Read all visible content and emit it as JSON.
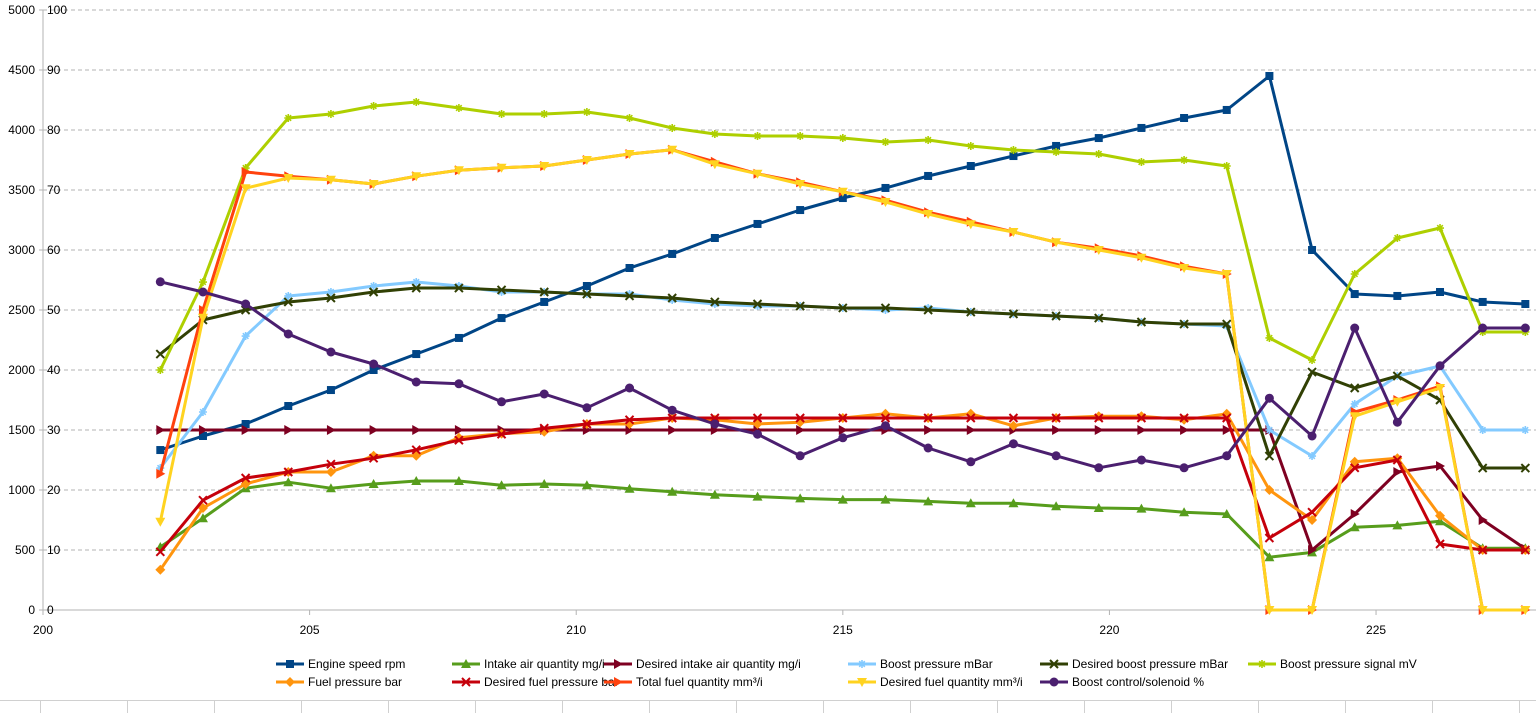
{
  "chart_data": {
    "type": "line",
    "title": "",
    "xlabel": "",
    "ylabel": "",
    "xlim": [
      200,
      228
    ],
    "x_ticks": [
      "200",
      "205",
      "210",
      "215",
      "220",
      "225"
    ],
    "y_left_lim": [
      0,
      5000
    ],
    "y_left_ticks": [
      "0",
      "500",
      "1000",
      "1500",
      "2000",
      "2500",
      "3000",
      "3500",
      "4000",
      "4500",
      "5000"
    ],
    "y_right_lim": [
      0,
      100
    ],
    "y_right_ticks": [
      "0",
      "10",
      "20",
      "30",
      "40",
      "50",
      "60",
      "70",
      "80",
      "90",
      "100"
    ],
    "grid": true,
    "legend_position": "bottom",
    "x": [
      202.2,
      203.0,
      203.8,
      204.6,
      205.4,
      206.2,
      207.0,
      207.8,
      208.6,
      209.4,
      210.2,
      211.0,
      211.8,
      212.6,
      213.4,
      214.2,
      215.0,
      215.8,
      216.6,
      217.4,
      218.2,
      219.0,
      219.8,
      220.6,
      221.4,
      222.2,
      223.0,
      223.8,
      224.6,
      225.4,
      226.2,
      227.0,
      227.8
    ],
    "series": [
      {
        "name": "Engine speed rpm",
        "axis": "left",
        "color": "#004586",
        "marker": "square",
        "values": [
          1333,
          1450,
          1550,
          1700,
          1833,
          2000,
          2133,
          2267,
          2433,
          2567,
          2700,
          2850,
          2967,
          3100,
          3217,
          3333,
          3433,
          3517,
          3617,
          3700,
          3783,
          3867,
          3933,
          4017,
          4100,
          4167,
          4450,
          3000,
          2633,
          2617,
          2650,
          2567,
          2550
        ]
      },
      {
        "name": "Intake air quantity mg/i",
        "axis": "right",
        "color": "#579d1c",
        "marker": "triangle",
        "values": [
          10.5,
          15.3,
          20.3,
          21.3,
          20.3,
          21.0,
          21.5,
          21.5,
          20.8,
          21.0,
          20.8,
          20.2,
          19.7,
          19.2,
          18.9,
          18.6,
          18.4,
          18.4,
          18.1,
          17.8,
          17.8,
          17.3,
          17.0,
          16.9,
          16.3,
          16.0,
          8.8,
          9.6,
          13.8,
          14.1,
          14.8,
          10.3,
          10.3
        ]
      },
      {
        "name": "Desired intake air quantity mg/i",
        "axis": "right",
        "color": "#7e0021",
        "marker": "triangle-right",
        "values": [
          30,
          30,
          30,
          30,
          30,
          30,
          30,
          30,
          30,
          30,
          30,
          30,
          30,
          30,
          30,
          30,
          30,
          30,
          30,
          30,
          30,
          30,
          30,
          30,
          30,
          30,
          30,
          10,
          16,
          23,
          24,
          15,
          10.2
        ]
      },
      {
        "name": "Boost pressure mBar",
        "axis": "left",
        "color": "#83caff",
        "marker": "star",
        "values": [
          1183,
          1650,
          2283,
          2617,
          2650,
          2700,
          2733,
          2700,
          2650,
          2650,
          2633,
          2633,
          2583,
          2550,
          2533,
          2533,
          2517,
          2500,
          2517,
          2483,
          2467,
          2450,
          2433,
          2400,
          2383,
          2367,
          1500,
          1283,
          1717,
          1950,
          2033,
          1500,
          1500
        ]
      },
      {
        "name": "Desired boost pressure mBar",
        "axis": "left",
        "color": "#314004",
        "marker": "x",
        "values": [
          2133,
          2417,
          2500,
          2567,
          2600,
          2650,
          2683,
          2683,
          2667,
          2650,
          2633,
          2617,
          2600,
          2567,
          2550,
          2533,
          2517,
          2517,
          2500,
          2483,
          2467,
          2450,
          2433,
          2400,
          2383,
          2383,
          1283,
          1983,
          1850,
          1950,
          1750,
          1183,
          1183
        ]
      },
      {
        "name": "Boost pressure signal mV",
        "axis": "left",
        "color": "#aecf00",
        "marker": "star",
        "values": [
          2000,
          2733,
          3683,
          4100,
          4133,
          4200,
          4233,
          4183,
          4133,
          4133,
          4150,
          4100,
          4017,
          3967,
          3950,
          3950,
          3933,
          3900,
          3917,
          3867,
          3833,
          3817,
          3800,
          3733,
          3750,
          3700,
          2267,
          2083,
          2800,
          3100,
          3183,
          2317,
          2317
        ]
      },
      {
        "name": "Fuel pressure bar",
        "axis": "right",
        "color": "#ff950e",
        "marker": "diamond",
        "values": [
          6.7,
          17.0,
          21.0,
          23.0,
          23.0,
          25.7,
          25.7,
          28.7,
          29.4,
          29.7,
          31.0,
          31.0,
          32.0,
          31.7,
          31.0,
          31.3,
          32.0,
          32.7,
          32.0,
          32.7,
          30.7,
          32.0,
          32.3,
          32.3,
          31.7,
          32.7,
          20.0,
          15.0,
          24.7,
          25.3,
          15.7,
          10.0,
          10.0
        ]
      },
      {
        "name": "Desired fuel pressure bar",
        "axis": "right",
        "color": "#c5000b",
        "marker": "x",
        "values": [
          9.7,
          18.3,
          22.0,
          23.0,
          24.3,
          25.3,
          26.7,
          28.3,
          29.3,
          30.3,
          31.0,
          31.7,
          32.0,
          32.0,
          32.0,
          32.0,
          32.0,
          32.0,
          32.0,
          32.0,
          32.0,
          32.0,
          32.0,
          32.0,
          32.0,
          32.0,
          12.0,
          16.3,
          23.7,
          25.0,
          11.0,
          10.0,
          10.0
        ]
      },
      {
        "name": "Total fuel quantity mm³/i",
        "axis": "right",
        "color": "#ff420e",
        "marker": "triangle-right",
        "values": [
          22.7,
          50.0,
          73.0,
          72.3,
          71.7,
          71.0,
          72.3,
          73.3,
          73.7,
          74.0,
          75.0,
          76.0,
          76.7,
          74.7,
          72.7,
          71.3,
          69.7,
          68.3,
          66.3,
          64.7,
          63.0,
          61.3,
          60.3,
          59.0,
          57.3,
          56.0,
          0,
          0,
          33.0,
          35.0,
          37.3,
          0,
          0
        ]
      },
      {
        "name": "Desired fuel quantity mm³/i",
        "axis": "right",
        "color": "#ffd320",
        "marker": "triangle-down",
        "values": [
          14.7,
          48.7,
          70.3,
          72.0,
          71.7,
          71.0,
          72.3,
          73.3,
          73.7,
          74.0,
          75.0,
          76.0,
          76.7,
          74.3,
          72.7,
          71.0,
          69.7,
          68.0,
          66.0,
          64.3,
          63.0,
          61.3,
          60.0,
          58.7,
          57.0,
          56.0,
          0,
          0,
          32.3,
          34.7,
          37.0,
          0,
          0
        ]
      },
      {
        "name": "Boost control/solenoid %",
        "axis": "right",
        "color": "#4b1f6f",
        "marker": "circle",
        "values": [
          54.7,
          53.0,
          51.0,
          46.0,
          43.0,
          41.0,
          38.0,
          37.7,
          34.7,
          36.0,
          33.7,
          37.0,
          33.3,
          31.0,
          29.3,
          25.7,
          28.7,
          30.7,
          27.0,
          24.7,
          27.7,
          25.7,
          23.7,
          25.0,
          23.7,
          25.7,
          35.3,
          29.0,
          47.0,
          31.3,
          40.7,
          47.0,
          47.0
        ]
      }
    ]
  }
}
